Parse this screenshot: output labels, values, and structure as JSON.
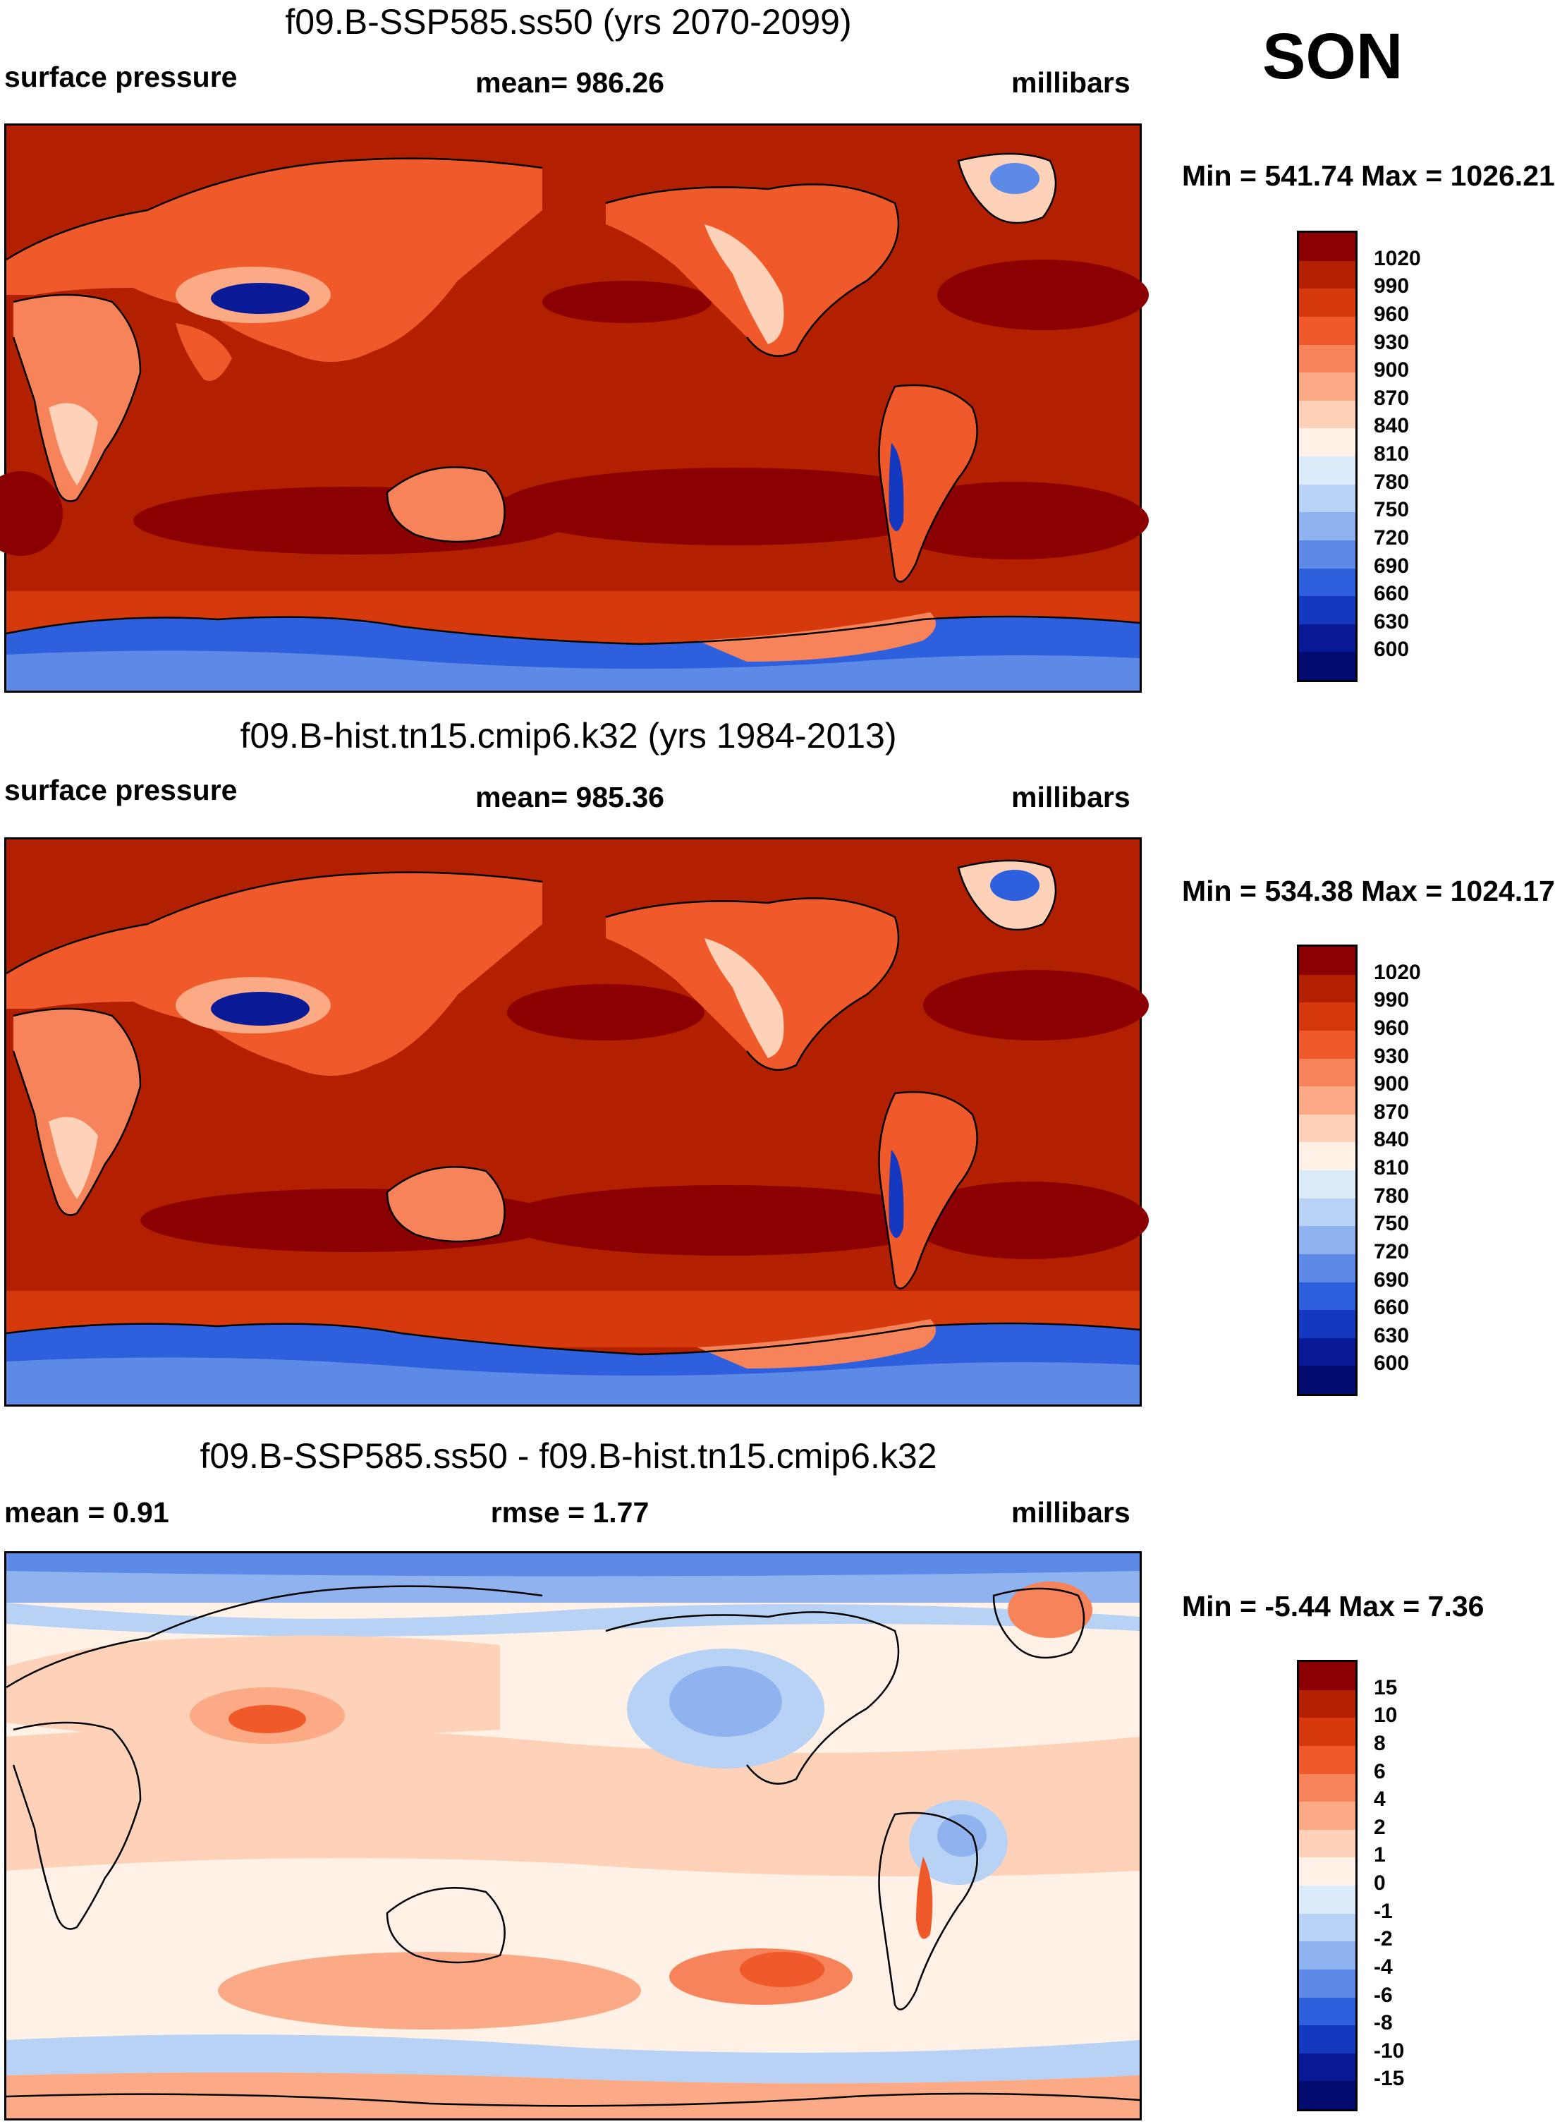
{
  "season": "SON",
  "panels": [
    {
      "title": "f09.B-SSP585.ss50 (yrs 2070-2099)",
      "left_label": "surface pressure",
      "center_label": "mean= 986.26",
      "right_label": "millibars",
      "minmax": "Min = 541.74 Max = 1026.21",
      "colorbar": {
        "labels": [
          "1020",
          "990",
          "960",
          "930",
          "900",
          "870",
          "840",
          "810",
          "780",
          "750",
          "720",
          "690",
          "660",
          "630",
          "600"
        ],
        "colors": [
          "#8b0000",
          "#b22000",
          "#d63a0c",
          "#f05a2a",
          "#f7835a",
          "#fbaa85",
          "#fdd2b8",
          "#fff1e6",
          "#dcebfa",
          "#b7d2f4",
          "#8fb3ee",
          "#5d8ae6",
          "#2e5fdc",
          "#1438c0",
          "#0a1a96",
          "#020c6e"
        ]
      }
    },
    {
      "title": "f09.B-hist.tn15.cmip6.k32 (yrs 1984-2013)",
      "left_label": "surface pressure",
      "center_label": "mean= 985.36",
      "right_label": "millibars",
      "minmax": "Min = 534.38 Max = 1024.17",
      "colorbar": {
        "labels": [
          "1020",
          "990",
          "960",
          "930",
          "900",
          "870",
          "840",
          "810",
          "780",
          "750",
          "720",
          "690",
          "660",
          "630",
          "600"
        ],
        "colors": [
          "#8b0000",
          "#b22000",
          "#d63a0c",
          "#f05a2a",
          "#f7835a",
          "#fbaa85",
          "#fdd2b8",
          "#fff1e6",
          "#dcebfa",
          "#b7d2f4",
          "#8fb3ee",
          "#5d8ae6",
          "#2e5fdc",
          "#1438c0",
          "#0a1a96",
          "#020c6e"
        ]
      }
    },
    {
      "title": "f09.B-SSP585.ss50 - f09.B-hist.tn15.cmip6.k32",
      "left_label": "mean =   0.91",
      "center_label": "rmse =   1.77",
      "right_label": "millibars",
      "minmax": "Min =  -5.44 Max =   7.36",
      "colorbar": {
        "labels": [
          "15",
          "10",
          "8",
          "6",
          "4",
          "2",
          "1",
          "0",
          "-1",
          "-2",
          "-4",
          "-6",
          "-8",
          "-10",
          "-15"
        ],
        "colors": [
          "#8b0000",
          "#b22000",
          "#d63a0c",
          "#f05a2a",
          "#f7835a",
          "#fbaa85",
          "#fdd2b8",
          "#fff1e6",
          "#dcebfa",
          "#b7d2f4",
          "#8fb3ee",
          "#5d8ae6",
          "#2e5fdc",
          "#1438c0",
          "#0a1a96",
          "#020c6e"
        ]
      }
    }
  ]
}
